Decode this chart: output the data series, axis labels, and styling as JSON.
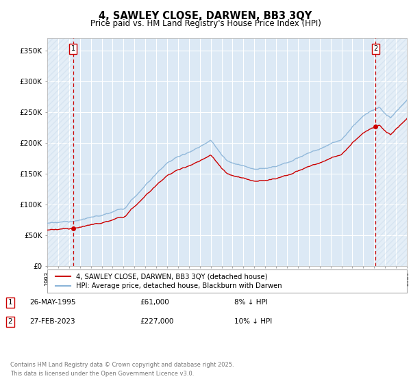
{
  "title": "4, SAWLEY CLOSE, DARWEN, BB3 3QY",
  "subtitle": "Price paid vs. HM Land Registry's House Price Index (HPI)",
  "bg_color": "#dce9f5",
  "hpi_color": "#8ab4d8",
  "price_color": "#cc0000",
  "vline_color": "#cc0000",
  "ylim": [
    0,
    370000
  ],
  "yticks": [
    0,
    50000,
    100000,
    150000,
    200000,
    250000,
    300000,
    350000
  ],
  "ytick_labels": [
    "£0",
    "£50K",
    "£100K",
    "£150K",
    "£200K",
    "£250K",
    "£300K",
    "£350K"
  ],
  "legend1": "4, SAWLEY CLOSE, DARWEN, BB3 3QY (detached house)",
  "legend2": "HPI: Average price, detached house, Blackburn with Darwen",
  "annotation1_num": "1",
  "annotation1_date": "26-MAY-1995",
  "annotation1_price": "£61,000",
  "annotation1_hpi": "8% ↓ HPI",
  "annotation2_num": "2",
  "annotation2_date": "27-FEB-2023",
  "annotation2_price": "£227,000",
  "annotation2_hpi": "10% ↓ HPI",
  "copyright": "Contains HM Land Registry data © Crown copyright and database right 2025.\nThis data is licensed under the Open Government Licence v3.0.",
  "vline1_year": 1995.38,
  "vline2_year": 2023.12,
  "sale1_x": 1995.38,
  "sale1_y": 61000,
  "sale2_x": 2023.12,
  "sale2_y": 227000,
  "xmin": 1993.0,
  "xmax": 2026.0
}
